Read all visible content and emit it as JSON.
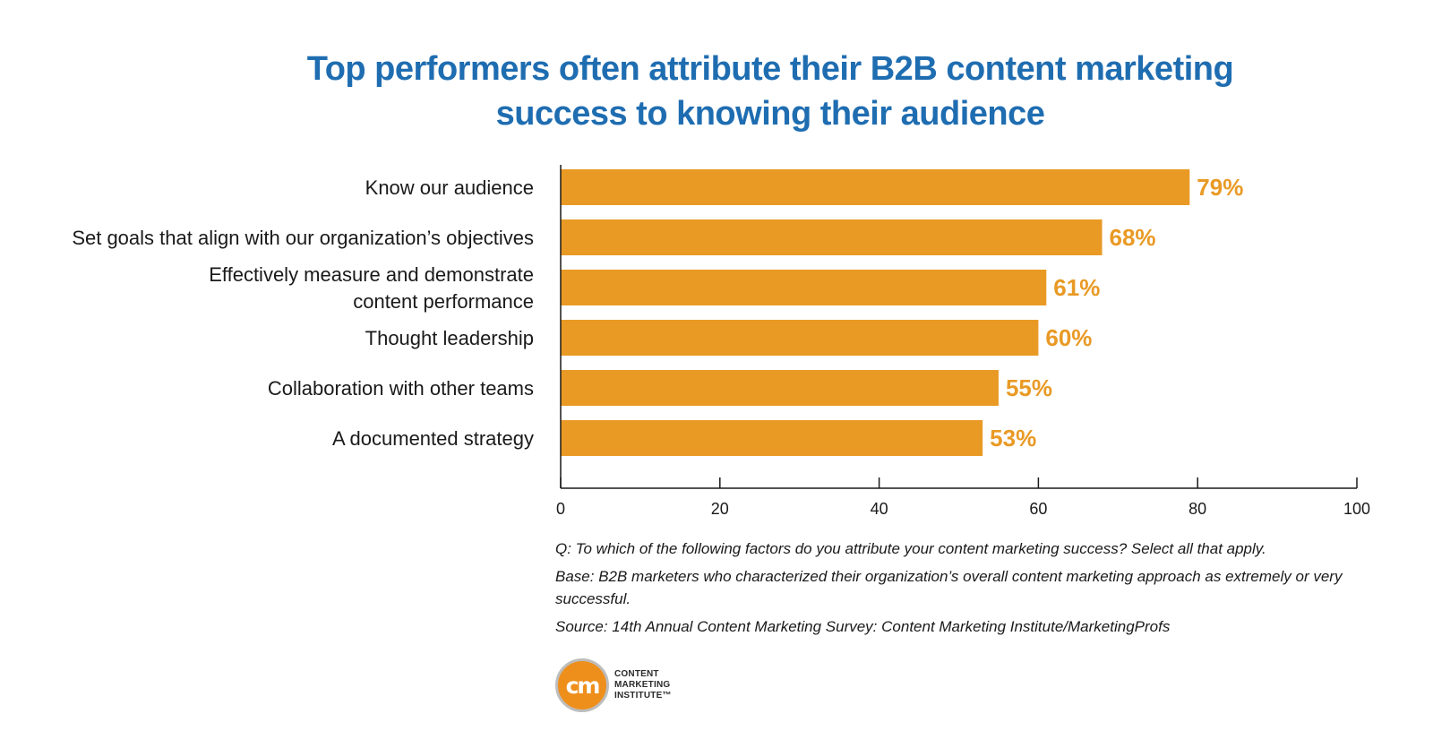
{
  "title": "Top performers often attribute their B2B content marketing success to knowing their audience",
  "chart_data": {
    "type": "bar",
    "orientation": "horizontal",
    "title": "Top performers often attribute their B2B content marketing success to knowing their audience",
    "xlabel": "",
    "ylabel": "",
    "xlim": [
      0,
      100
    ],
    "xticks": [
      0,
      20,
      40,
      60,
      80,
      100
    ],
    "grid": false,
    "categories": [
      [
        "Know our audience"
      ],
      [
        "Set goals that align with our organization’s objectives"
      ],
      [
        "Effectively measure and demonstrate",
        "content performance"
      ],
      [
        "Thought leadership"
      ],
      [
        "Collaboration with other teams"
      ],
      [
        "A documented strategy"
      ]
    ],
    "values": [
      79,
      68,
      61,
      60,
      55,
      53
    ],
    "value_labels": [
      "79%",
      "68%",
      "61%",
      "60%",
      "55%",
      "53%"
    ],
    "bar_color": "#e99a25",
    "value_label_color": "#e99a25"
  },
  "notes": {
    "question": "Q: To which of the following factors do you attribute your content marketing success? Select all that apply.",
    "base": "Base: B2B marketers who characterized their organization’s overall content marketing approach as extremely or very successful.",
    "source": "Source: 14th Annual Content Marketing Survey: Content Marketing Institute/MarketingProfs"
  },
  "logo": {
    "mark": "cm",
    "line1": "CONTENT",
    "line2": "MARKETING",
    "line3": "INSTITUTE™",
    "colors": {
      "orange": "#ee8f1c",
      "ring": "#bdbdbd"
    }
  },
  "colors": {
    "title": "#1f6db1",
    "bar": "#e99a25",
    "axis": "#1a1a1a"
  }
}
